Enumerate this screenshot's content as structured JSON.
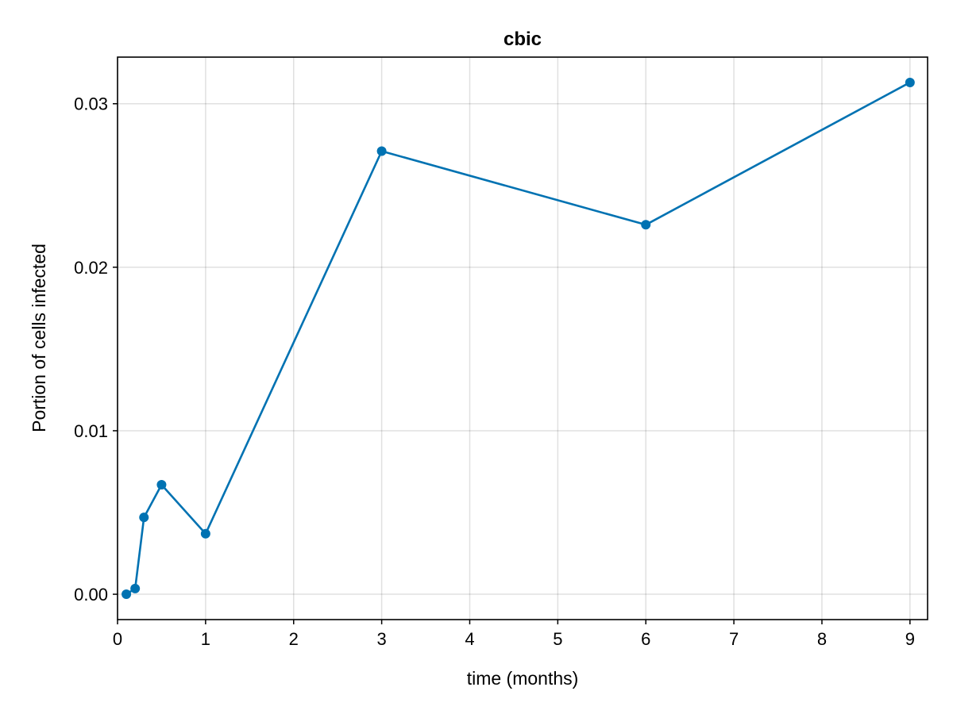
{
  "chart_data": {
    "type": "line",
    "title": "cbic",
    "xlabel": "time (months)",
    "ylabel": "Portion of cells infected",
    "xlim": [
      0,
      9.2
    ],
    "ylim": [
      -0.00155,
      0.03285
    ],
    "xticks": [
      0,
      1,
      2,
      3,
      4,
      5,
      6,
      7,
      8,
      9
    ],
    "xtick_labels": [
      "0",
      "1",
      "2",
      "3",
      "4",
      "5",
      "6",
      "7",
      "8",
      "9"
    ],
    "yticks": [
      0.0,
      0.01,
      0.02,
      0.03
    ],
    "ytick_labels": [
      "0.00",
      "0.01",
      "0.02",
      "0.03"
    ],
    "grid": true,
    "legend": "none",
    "series": [
      {
        "x": [
          0.1,
          0.2,
          0.3,
          0.5,
          1,
          3,
          6,
          9
        ],
        "y": [
          0.0,
          0.00035,
          0.0047,
          0.0067,
          0.0037,
          0.0271,
          0.0226,
          0.0313
        ],
        "color": "#0072b2",
        "marker": "circle"
      }
    ]
  }
}
